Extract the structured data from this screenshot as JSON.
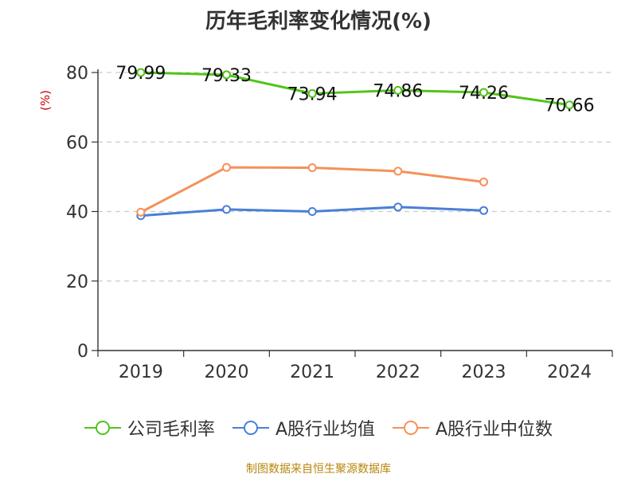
{
  "chart_data": {
    "type": "line",
    "title": "历年毛利率变化情况(%)",
    "ylabel": "(%)",
    "xlabel": "",
    "categories": [
      "2019",
      "2020",
      "2021",
      "2022",
      "2023",
      "2024"
    ],
    "ylim": [
      0,
      80
    ],
    "yticks": [
      0,
      20,
      40,
      60,
      80
    ],
    "grid": true,
    "legend_position": "bottom",
    "series": [
      {
        "name": "公司毛利率",
        "color": "#52c41a",
        "values": [
          79.99,
          79.33,
          73.94,
          74.86,
          74.26,
          70.66
        ],
        "labels": [
          "79.99",
          "79.33",
          "73.94",
          "74.86",
          "74.26",
          "70.66"
        ],
        "show_labels": true
      },
      {
        "name": "A股行业均值",
        "color": "#4a7fd8",
        "values": [
          38.8,
          40.6,
          40.0,
          41.3,
          40.3,
          null
        ],
        "show_labels": false
      },
      {
        "name": "A股行业中位数",
        "color": "#f5915a",
        "values": [
          39.8,
          52.7,
          52.6,
          51.6,
          48.5,
          null
        ],
        "show_labels": false
      }
    ]
  },
  "source": "制图数据来自恒生聚源数据库"
}
